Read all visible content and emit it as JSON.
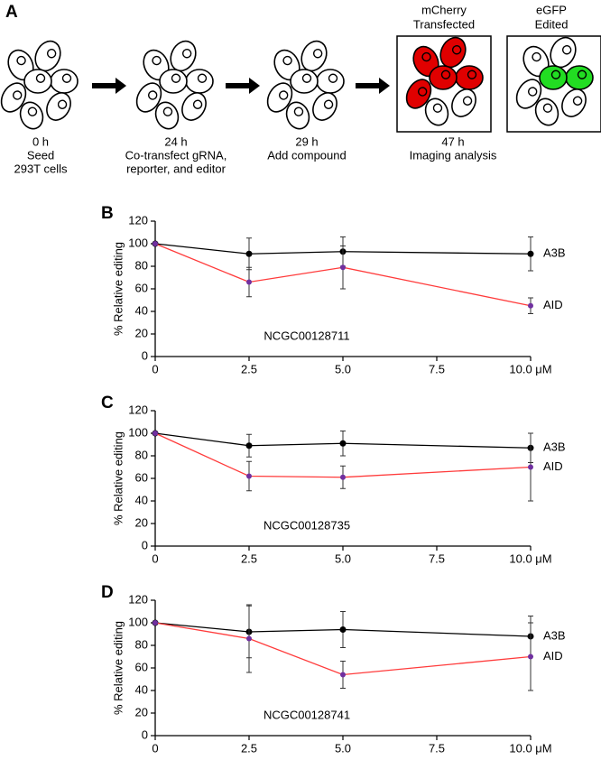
{
  "panel_a": {
    "panel_label": "A",
    "steps": [
      {
        "time": "0 h",
        "lines": [
          "Seed",
          "293T cells"
        ]
      },
      {
        "time": "24 h",
        "lines": [
          "Co-transfect gRNA,",
          "reporter, and editor"
        ]
      },
      {
        "time": "29 h",
        "lines": [
          "Add compound"
        ]
      },
      {
        "time": "47 h",
        "lines": [
          "Imaging analysis"
        ]
      }
    ],
    "images": [
      {
        "title": [
          "mCherry",
          "Transfected"
        ],
        "color": "#e00000"
      },
      {
        "title": [
          "eGFP",
          "Edited"
        ],
        "color": "#22dd22"
      }
    ]
  },
  "chart_data": [
    {
      "type": "line",
      "panel_label": "B",
      "compound": "NCGC00128711",
      "y_label": "% Relative editing",
      "x": [
        0,
        2.5,
        5,
        10
      ],
      "xlim": [
        0,
        10
      ],
      "xticks": [
        0,
        2.5,
        {
          "value": 5,
          "label": "5.0"
        },
        7.5,
        {
          "value": 10,
          "label": "10.0 μM"
        }
      ],
      "ylim": [
        0,
        120
      ],
      "yticks": [
        0,
        20,
        40,
        60,
        80,
        100,
        120
      ],
      "series": [
        {
          "name": "A3B",
          "color": "#000000",
          "marker_color": "#000000",
          "values": [
            100,
            91,
            93,
            91
          ],
          "errors": [
            null,
            14,
            13,
            15
          ]
        },
        {
          "name": "AID",
          "color": "#ff3b3b",
          "marker_color": "#7030a0",
          "values": [
            100,
            66,
            79,
            45
          ],
          "errors": [
            null,
            13,
            19,
            7
          ]
        }
      ]
    },
    {
      "type": "line",
      "panel_label": "C",
      "compound": "NCGC00128735",
      "y_label": "% Relative editing",
      "x": [
        0,
        2.5,
        5,
        10
      ],
      "xlim": [
        0,
        10
      ],
      "xticks": [
        0,
        2.5,
        {
          "value": 5,
          "label": "5.0"
        },
        7.5,
        {
          "value": 10,
          "label": "10.0 μM"
        }
      ],
      "ylim": [
        0,
        120
      ],
      "yticks": [
        0,
        20,
        40,
        60,
        80,
        100,
        120
      ],
      "series": [
        {
          "name": "A3B",
          "color": "#000000",
          "marker_color": "#000000",
          "values": [
            100,
            89,
            91,
            87
          ],
          "errors": [
            null,
            10,
            11,
            13
          ]
        },
        {
          "name": "AID",
          "color": "#ff3b3b",
          "marker_color": "#7030a0",
          "values": [
            100,
            62,
            61,
            70
          ],
          "errors": [
            null,
            13,
            10,
            30
          ]
        }
      ]
    },
    {
      "type": "line",
      "panel_label": "D",
      "compound": "NCGC00128741",
      "y_label": "% Relative editing",
      "x": [
        0,
        2.5,
        5,
        10
      ],
      "xlim": [
        0,
        10
      ],
      "xticks": [
        0,
        2.5,
        {
          "value": 5,
          "label": "5.0"
        },
        7.5,
        {
          "value": 10,
          "label": "10.0 μM"
        }
      ],
      "ylim": [
        0,
        120
      ],
      "yticks": [
        0,
        20,
        40,
        60,
        80,
        100,
        120
      ],
      "series": [
        {
          "name": "A3B",
          "color": "#000000",
          "marker_color": "#000000",
          "values": [
            100,
            92,
            94,
            88
          ],
          "errors": [
            null,
            23,
            16,
            18
          ]
        },
        {
          "name": "AID",
          "color": "#ff3b3b",
          "marker_color": "#7030a0",
          "values": [
            100,
            86,
            54,
            70
          ],
          "errors": [
            null,
            30,
            12,
            30
          ]
        }
      ]
    }
  ]
}
